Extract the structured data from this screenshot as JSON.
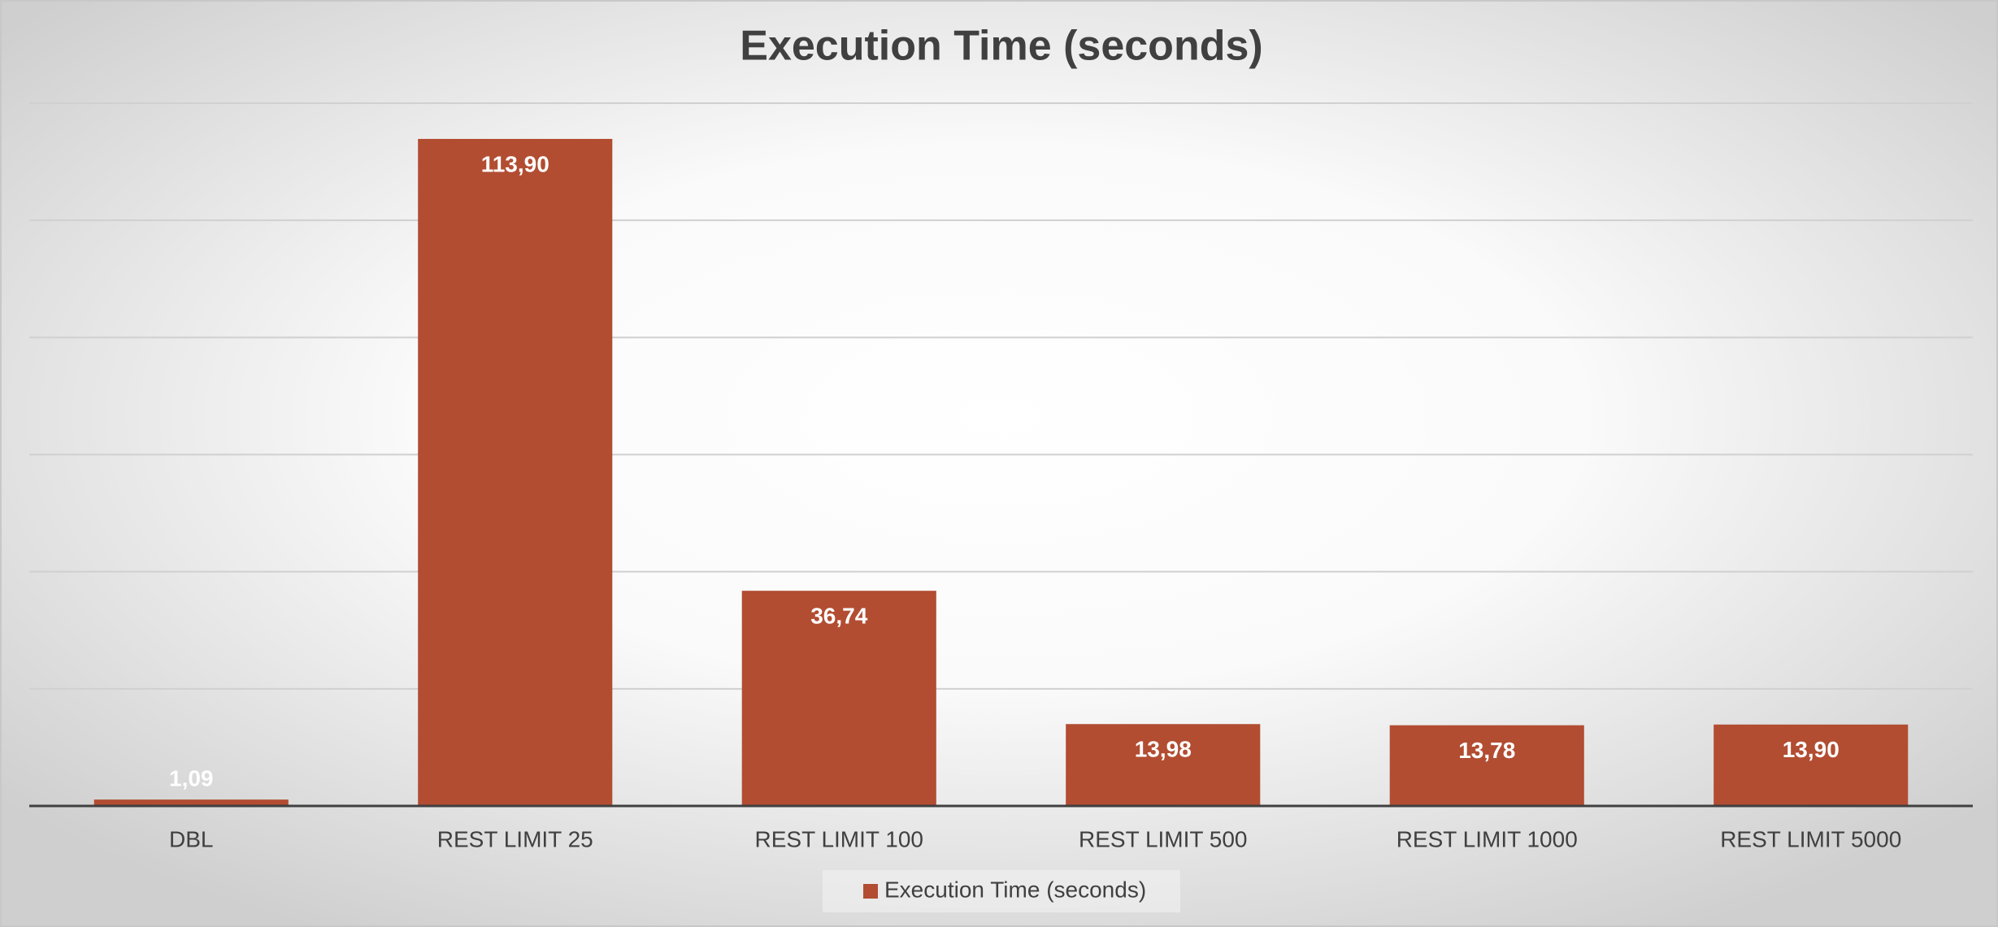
{
  "chart_data": {
    "type": "bar",
    "title": "Execution Time (seconds)",
    "categories": [
      "DBL",
      "REST LIMIT 25",
      "REST LIMIT 100",
      "REST LIMIT 500",
      "REST LIMIT 1000",
      "REST LIMIT 5000"
    ],
    "series": [
      {
        "name": "Execution Time (seconds)",
        "color": "#b24d32",
        "values": [
          1.09,
          113.9,
          36.74,
          13.98,
          13.78,
          13.9
        ],
        "value_labels": [
          "1,09",
          "113,90",
          "36,74",
          "13,98",
          "13,78",
          "13,90"
        ]
      }
    ],
    "ylim": [
      0,
      120
    ],
    "yticks": [
      0,
      20,
      40,
      60,
      80,
      100,
      120
    ],
    "grid": true,
    "legend": "bottom"
  }
}
